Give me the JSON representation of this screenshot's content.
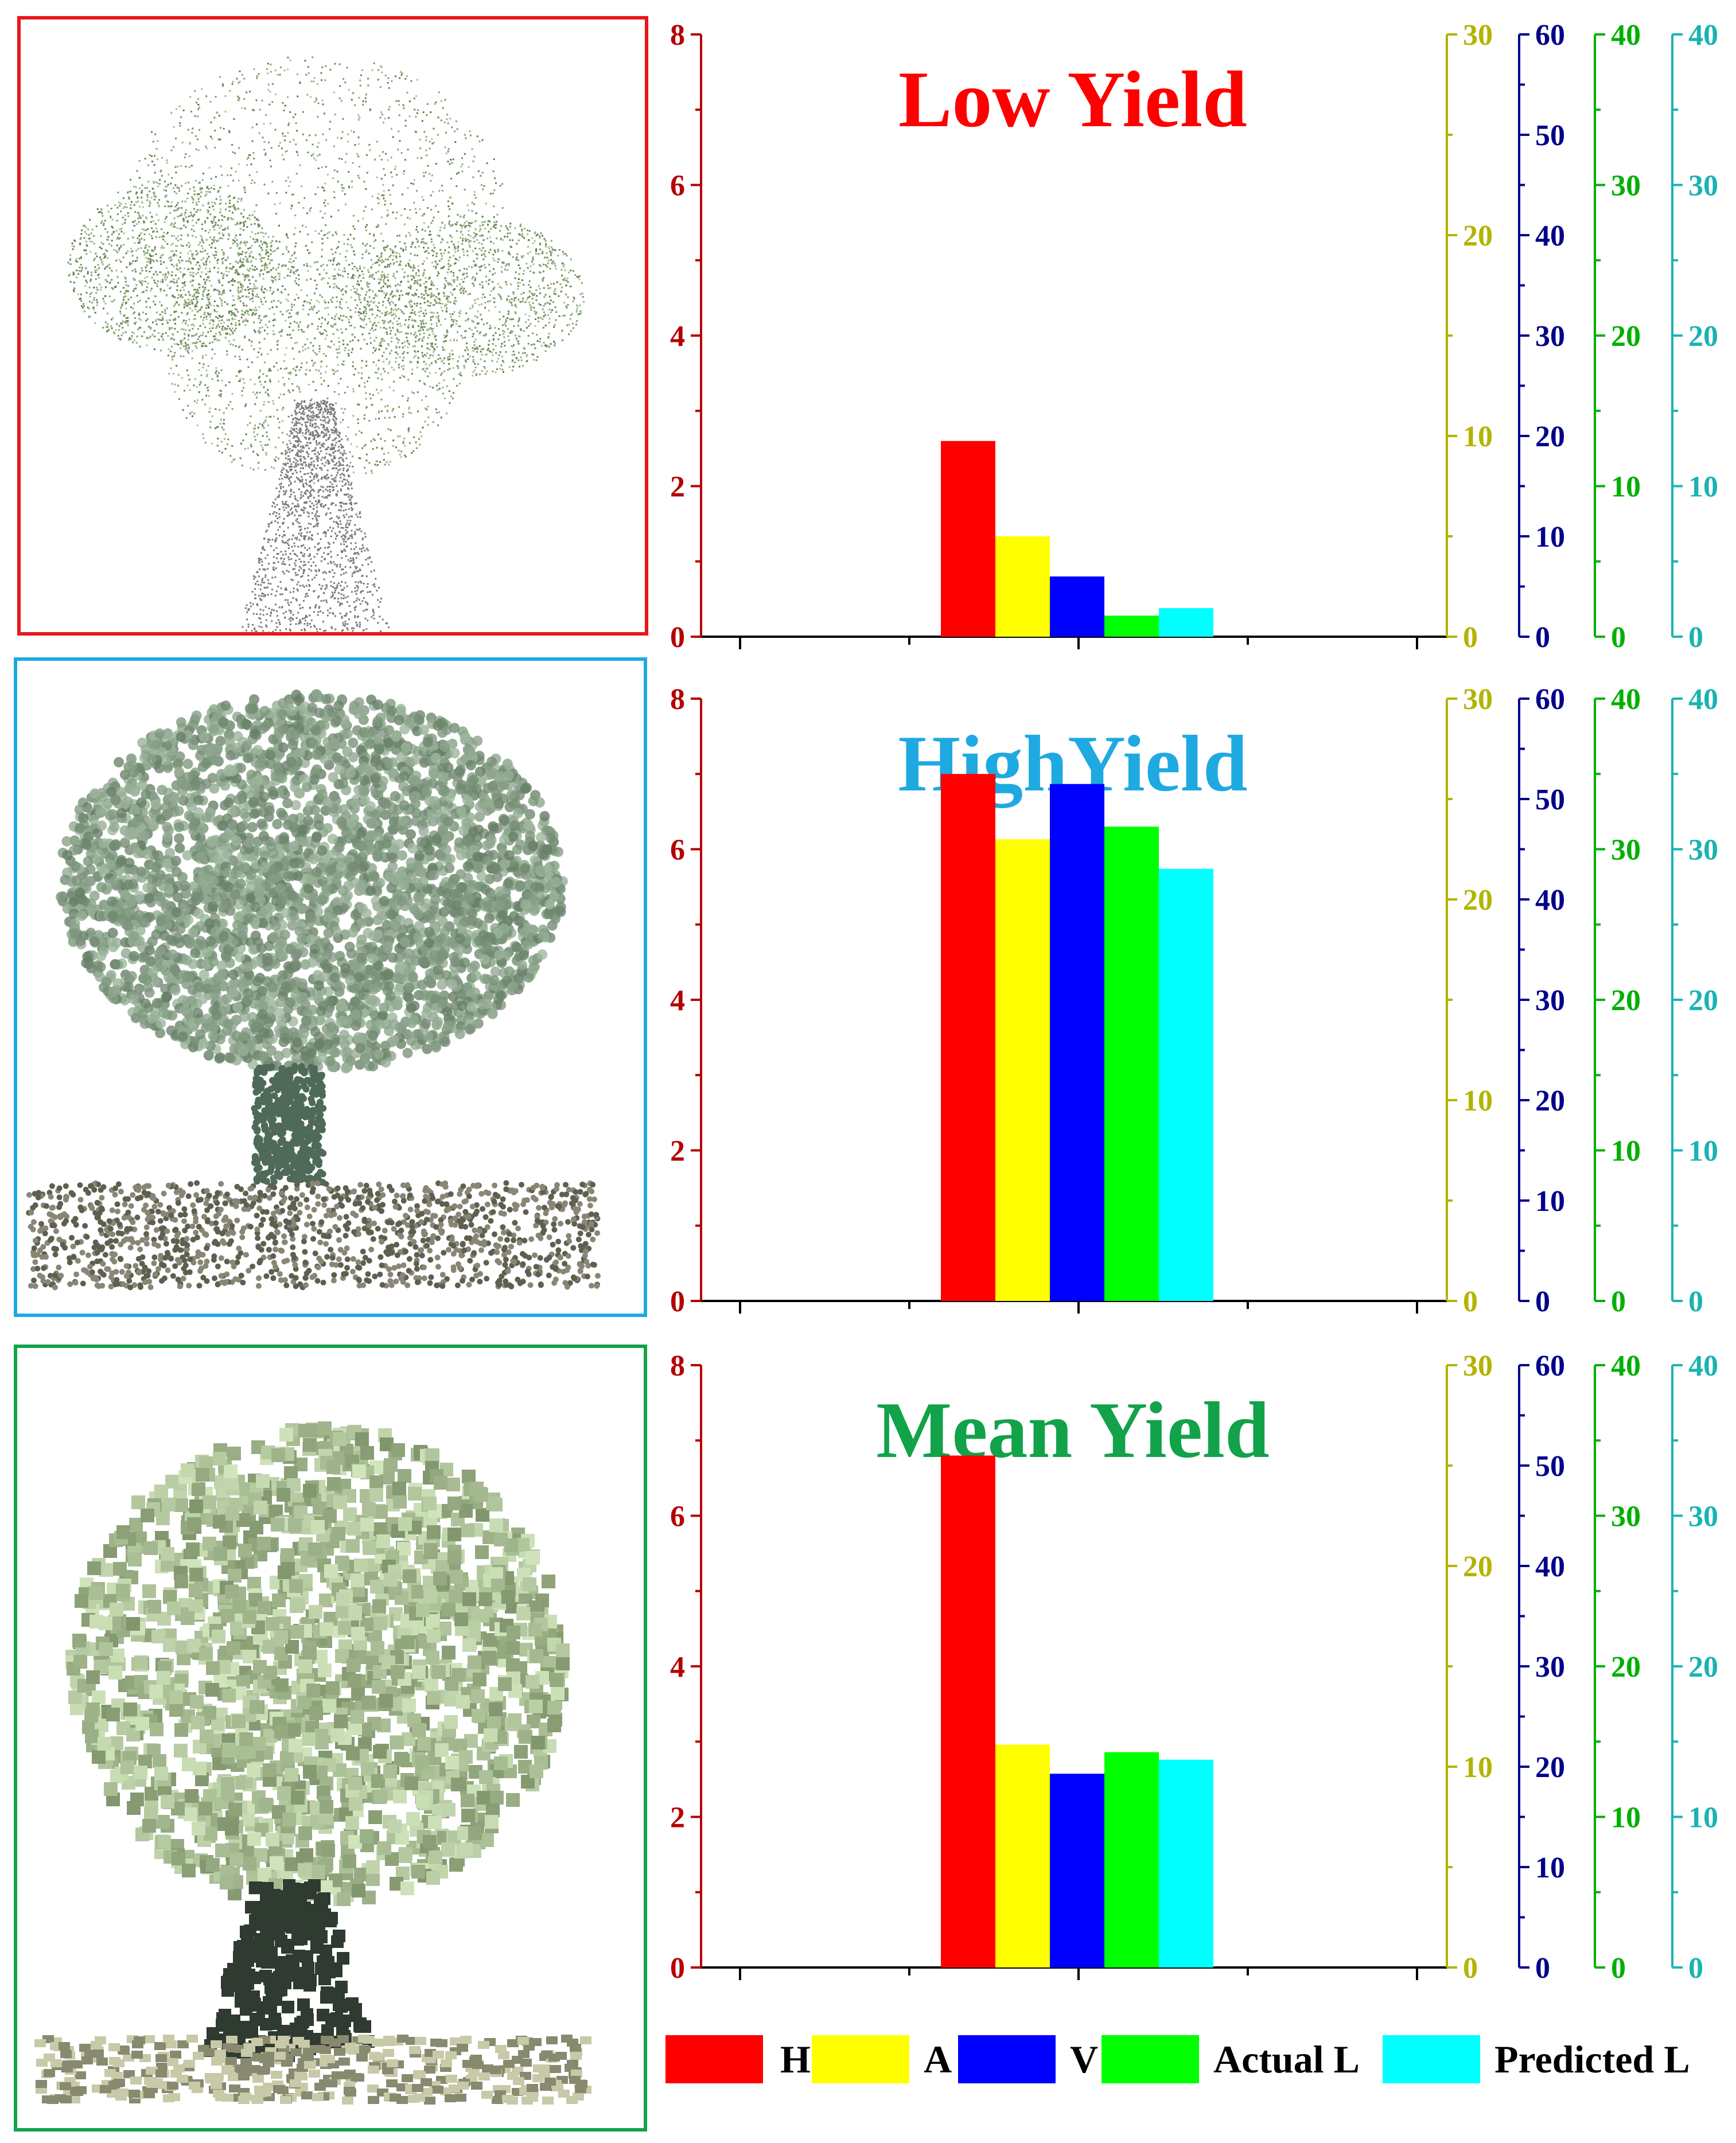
{
  "figure": {
    "legend": [
      {
        "label": "H",
        "color": "#ff0000"
      },
      {
        "label": "A",
        "color": "#ffff00"
      },
      {
        "label": "V",
        "color": "#0000ff"
      },
      {
        "label": "Actual L",
        "color": "#00ff00"
      },
      {
        "label": "Predicted L",
        "color": "#00ffff"
      }
    ],
    "tree_images": [
      {
        "panel": "Low Yield",
        "frame_color": "#e8171b",
        "icon": "sparse-point-cloud-tree-icon"
      },
      {
        "panel": "HighYield",
        "frame_color": "#1fa9e1",
        "icon": "dense-point-cloud-tree-icon"
      },
      {
        "panel": "Mean Yield",
        "frame_color": "#12a24a",
        "icon": "pixelated-tree-icon"
      }
    ]
  },
  "chart_data": [
    {
      "type": "bar",
      "title": "Low Yield",
      "title_color": "#ff0000",
      "series": [
        {
          "name": "H",
          "axis": "H",
          "value": 2.6
        },
        {
          "name": "A",
          "axis": "A",
          "value": 5.0
        },
        {
          "name": "V",
          "axis": "V",
          "value": 6.0
        },
        {
          "name": "Actual L",
          "axis": "Actual L",
          "value": 1.4
        },
        {
          "name": "Predicted L",
          "axis": "Predicted L",
          "value": 1.9
        }
      ],
      "axes": [
        {
          "series": "H",
          "color": "#b50000",
          "range": [
            0,
            8
          ],
          "ticks": [
            0,
            2,
            4,
            6,
            8
          ]
        },
        {
          "series": "A",
          "color": "#b3b300",
          "range": [
            0,
            30
          ],
          "ticks": [
            0,
            10,
            20,
            30
          ]
        },
        {
          "series": "V",
          "color": "#00008b",
          "range": [
            0,
            60
          ],
          "ticks": [
            0,
            10,
            20,
            30,
            40,
            50,
            60
          ]
        },
        {
          "series": "Actual L",
          "color": "#00b000",
          "range": [
            0,
            40
          ],
          "ticks": [
            0,
            10,
            20,
            30,
            40
          ]
        },
        {
          "series": "Predicted L",
          "color": "#1ab3b3",
          "range": [
            0,
            40
          ],
          "ticks": [
            0,
            10,
            20,
            30,
            40
          ]
        }
      ],
      "grid": false
    },
    {
      "type": "bar",
      "title": "HighYield",
      "title_color": "#1fa9e1",
      "series": [
        {
          "name": "H",
          "axis": "H",
          "value": 7.0
        },
        {
          "name": "A",
          "axis": "A",
          "value": 23.0
        },
        {
          "name": "V",
          "axis": "V",
          "value": 51.5
        },
        {
          "name": "Actual L",
          "axis": "Actual L",
          "value": 31.5
        },
        {
          "name": "Predicted L",
          "axis": "Predicted L",
          "value": 28.7
        }
      ],
      "axes": [
        {
          "series": "H",
          "color": "#b50000",
          "range": [
            0,
            8
          ],
          "ticks": [
            0,
            2,
            4,
            6,
            8
          ]
        },
        {
          "series": "A",
          "color": "#b3b300",
          "range": [
            0,
            30
          ],
          "ticks": [
            0,
            10,
            20,
            30
          ]
        },
        {
          "series": "V",
          "color": "#00008b",
          "range": [
            0,
            60
          ],
          "ticks": [
            0,
            10,
            20,
            30,
            40,
            50,
            60
          ]
        },
        {
          "series": "Actual L",
          "color": "#00b000",
          "range": [
            0,
            40
          ],
          "ticks": [
            0,
            10,
            20,
            30,
            40
          ]
        },
        {
          "series": "Predicted L",
          "color": "#1ab3b3",
          "range": [
            0,
            40
          ],
          "ticks": [
            0,
            10,
            20,
            30,
            40
          ]
        }
      ],
      "grid": false
    },
    {
      "type": "bar",
      "title": "Mean Yield",
      "title_color": "#12a24a",
      "series": [
        {
          "name": "H",
          "axis": "H",
          "value": 6.8
        },
        {
          "name": "A",
          "axis": "A",
          "value": 11.1
        },
        {
          "name": "V",
          "axis": "V",
          "value": 19.3
        },
        {
          "name": "Actual L",
          "axis": "Actual L",
          "value": 14.3
        },
        {
          "name": "Predicted L",
          "axis": "Predicted L",
          "value": 13.8
        }
      ],
      "axes": [
        {
          "series": "H",
          "color": "#b50000",
          "range": [
            0,
            8
          ],
          "ticks": [
            0,
            2,
            4,
            6,
            8
          ]
        },
        {
          "series": "A",
          "color": "#b3b300",
          "range": [
            0,
            30
          ],
          "ticks": [
            0,
            10,
            20,
            30
          ]
        },
        {
          "series": "V",
          "color": "#00008b",
          "range": [
            0,
            60
          ],
          "ticks": [
            0,
            10,
            20,
            30,
            40,
            50,
            60
          ]
        },
        {
          "series": "Actual L",
          "color": "#00b000",
          "range": [
            0,
            40
          ],
          "ticks": [
            0,
            10,
            20,
            30,
            40
          ]
        },
        {
          "series": "Predicted L",
          "color": "#1ab3b3",
          "range": [
            0,
            40
          ],
          "ticks": [
            0,
            10,
            20,
            30,
            40
          ]
        }
      ],
      "grid": false
    }
  ]
}
